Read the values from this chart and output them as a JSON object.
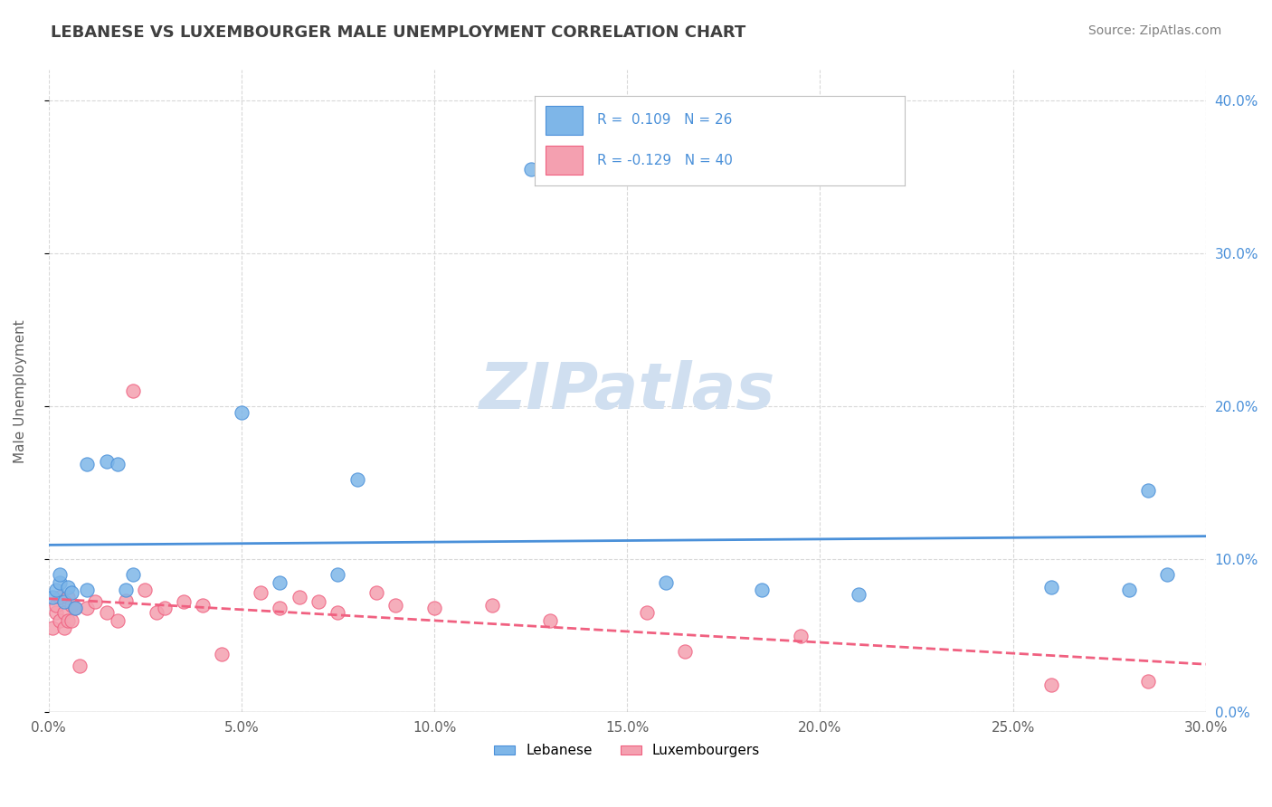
{
  "title": "LEBANESE VS LUXEMBOURGER MALE UNEMPLOYMENT CORRELATION CHART",
  "source": "Source: ZipAtlas.com",
  "ylabel_label": "Male Unemployment",
  "legend_bottom": [
    "Lebanese",
    "Luxembourgers"
  ],
  "legend_top_blue_r": "R =  0.109",
  "legend_top_blue_n": "N = 26",
  "legend_top_pink_r": "R = -0.129",
  "legend_top_pink_n": "N = 40",
  "blue_color": "#7EB6E8",
  "pink_color": "#F4A0B0",
  "blue_line_color": "#4A90D9",
  "pink_line_color": "#F06080",
  "watermark_color": "#D0DFF0",
  "title_color": "#404040",
  "grid_color": "#D8D8D8",
  "right_tick_color": "#4A90D9",
  "xlim": [
    0.0,
    0.3
  ],
  "ylim": [
    0.0,
    0.42
  ],
  "blue_scatter_x": [
    0.001,
    0.002,
    0.003,
    0.003,
    0.004,
    0.005,
    0.006,
    0.007,
    0.01,
    0.01,
    0.015,
    0.018,
    0.02,
    0.022,
    0.05,
    0.06,
    0.075,
    0.08,
    0.125,
    0.16,
    0.185,
    0.21,
    0.26,
    0.28,
    0.285,
    0.29
  ],
  "blue_scatter_y": [
    0.075,
    0.08,
    0.085,
    0.09,
    0.072,
    0.082,
    0.078,
    0.068,
    0.08,
    0.162,
    0.164,
    0.162,
    0.08,
    0.09,
    0.196,
    0.085,
    0.09,
    0.152,
    0.355,
    0.085,
    0.08,
    0.077,
    0.082,
    0.08,
    0.145,
    0.09
  ],
  "pink_scatter_x": [
    0.001,
    0.002,
    0.002,
    0.003,
    0.003,
    0.004,
    0.004,
    0.005,
    0.005,
    0.006,
    0.006,
    0.007,
    0.008,
    0.01,
    0.012,
    0.015,
    0.018,
    0.02,
    0.022,
    0.025,
    0.028,
    0.03,
    0.035,
    0.04,
    0.045,
    0.055,
    0.06,
    0.065,
    0.07,
    0.075,
    0.085,
    0.09,
    0.1,
    0.115,
    0.13,
    0.155,
    0.165,
    0.195,
    0.26,
    0.285
  ],
  "pink_scatter_y": [
    0.055,
    0.065,
    0.07,
    0.06,
    0.075,
    0.055,
    0.065,
    0.06,
    0.075,
    0.06,
    0.07,
    0.068,
    0.03,
    0.068,
    0.072,
    0.065,
    0.06,
    0.073,
    0.21,
    0.08,
    0.065,
    0.068,
    0.072,
    0.07,
    0.038,
    0.078,
    0.068,
    0.075,
    0.072,
    0.065,
    0.078,
    0.07,
    0.068,
    0.07,
    0.06,
    0.065,
    0.04,
    0.05,
    0.018,
    0.02
  ]
}
